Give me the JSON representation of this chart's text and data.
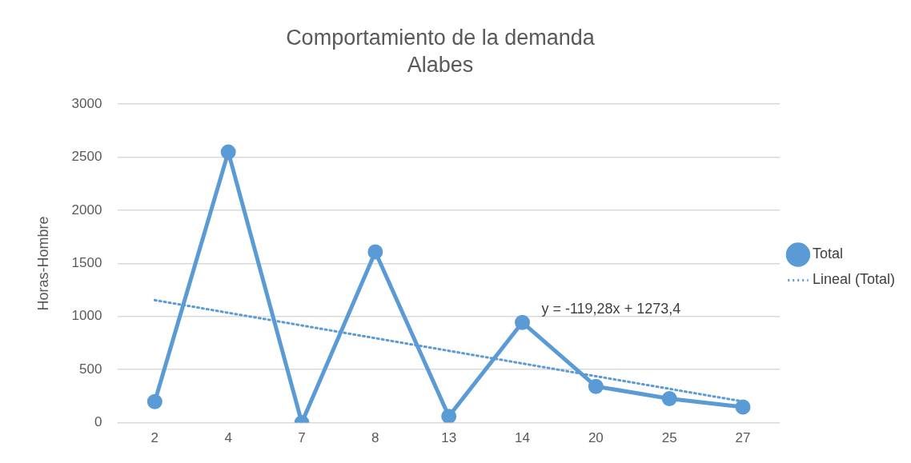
{
  "chart_data": {
    "type": "line",
    "title": "Comportamiento de la demanda Alabes",
    "ylabel": "Horas-Hombre",
    "categories": [
      "2",
      "4",
      "7",
      "8",
      "13",
      "14",
      "20",
      "25",
      "27"
    ],
    "series": [
      {
        "name": "Total",
        "color": "#5b9bd5",
        "marker": "circle",
        "line_style": "solid",
        "values": [
          199,
          2549,
          0,
          1609,
          60,
          944,
          342,
          226,
          147
        ]
      },
      {
        "name": "Lineal (Total)",
        "color": "#5b9bd5",
        "marker": "none",
        "line_style": "dotted",
        "values": [
          1154,
          1035,
          916,
          796,
          677,
          558,
          438,
          319,
          200
        ]
      }
    ],
    "ylim": [
      0,
      3000
    ],
    "yticks": [
      0,
      500,
      1000,
      1500,
      2000,
      2500,
      3000
    ],
    "grid": "y",
    "legend": "right",
    "annotations": [
      "y = -119,28x + 1273,4"
    ]
  }
}
